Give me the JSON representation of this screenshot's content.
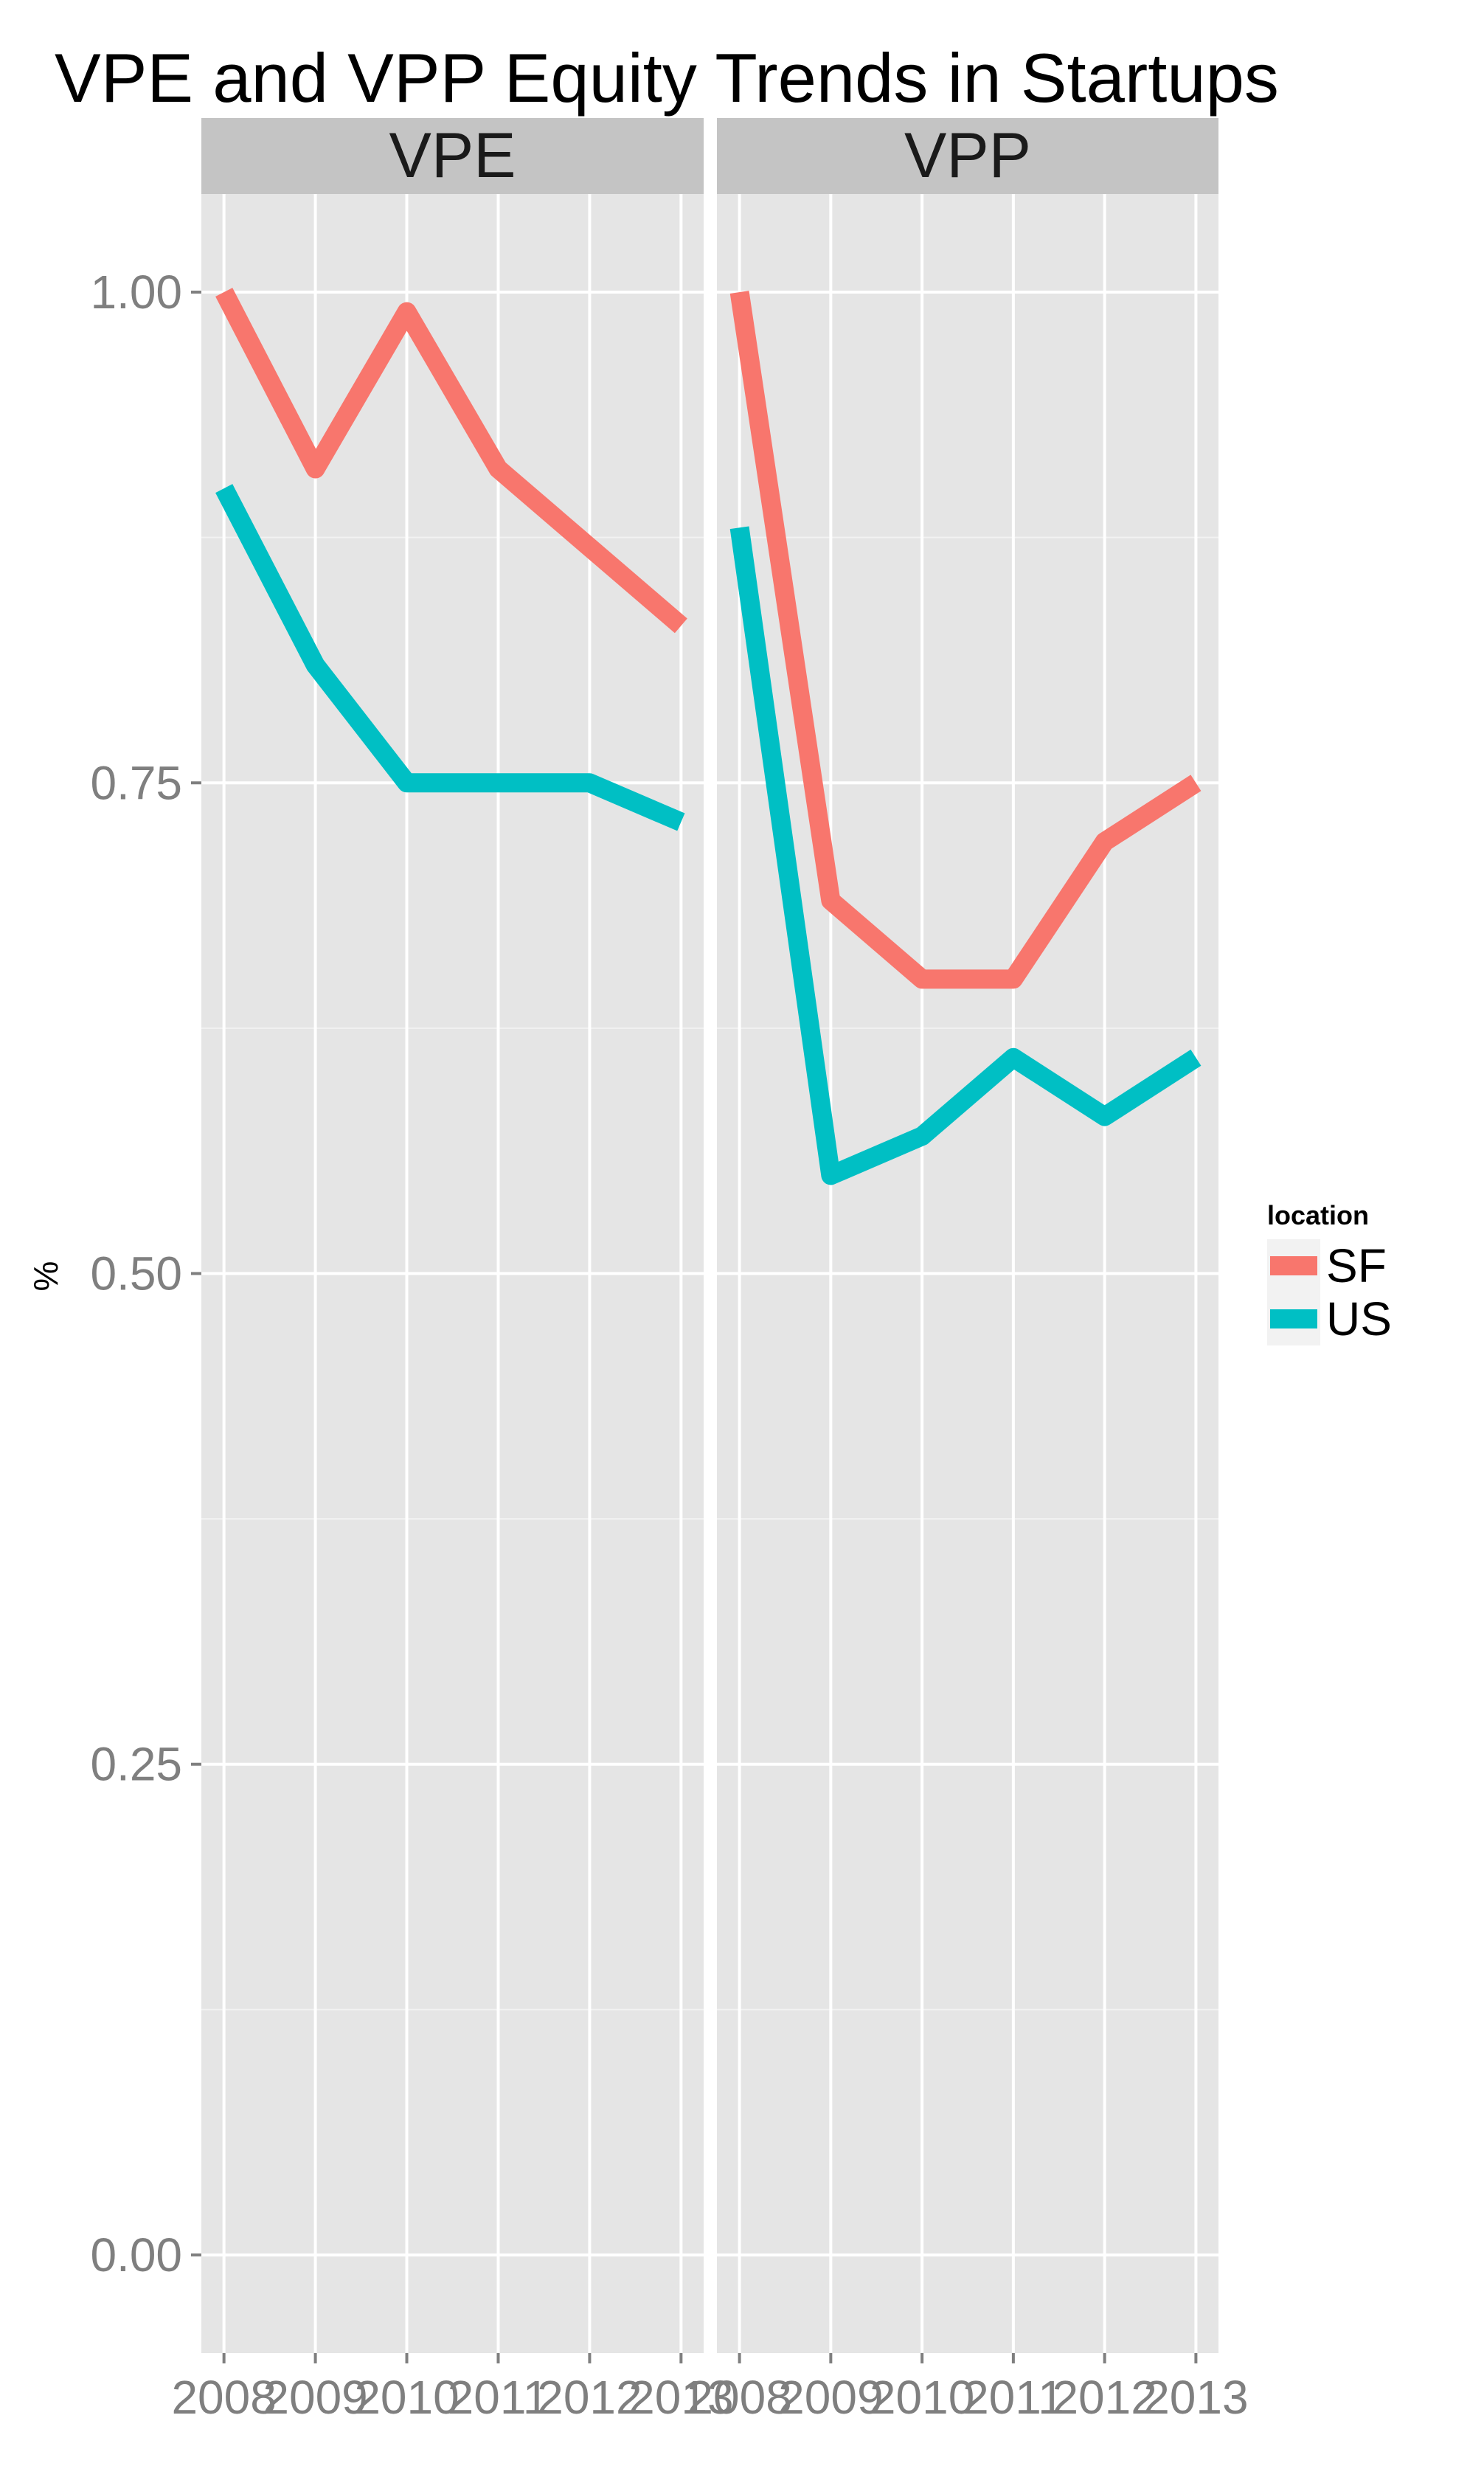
{
  "chart_data": {
    "type": "line",
    "title": "VPE and VPP Equity Trends in Startups",
    "ylabel": "%",
    "xlabel": "",
    "x": [
      2008,
      2009,
      2010,
      2011,
      2012,
      2013
    ],
    "x_tick_labels": [
      "2008",
      "2009",
      "2010",
      "2011",
      "2012",
      "2013"
    ],
    "y_ticks": [
      0.0,
      0.25,
      0.5,
      0.75,
      1.0
    ],
    "y_tick_labels": [
      "0.00",
      "0.25",
      "0.50",
      "0.75",
      "1.00"
    ],
    "ylim": [
      -0.05,
      1.05
    ],
    "grid": true,
    "legend": {
      "title": "location",
      "placement": "right",
      "entries": [
        {
          "label": "SF",
          "color": "#F8766D"
        },
        {
          "label": "US",
          "color": "#00BFC4"
        }
      ]
    },
    "facets": [
      {
        "name": "VPE",
        "series": [
          {
            "name": "SF",
            "color": "#F8766D",
            "values": [
              1.0,
              0.91,
              0.99,
              0.91,
              0.87,
              0.83
            ]
          },
          {
            "name": "US",
            "color": "#00BFC4",
            "values": [
              0.9,
              0.81,
              0.75,
              0.75,
              0.75,
              0.73
            ]
          }
        ]
      },
      {
        "name": "VPP",
        "series": [
          {
            "name": "SF",
            "color": "#F8766D",
            "values": [
              1.0,
              0.69,
              0.65,
              0.65,
              0.72,
              0.75
            ]
          },
          {
            "name": "US",
            "color": "#00BFC4",
            "values": [
              0.88,
              0.55,
              0.57,
              0.61,
              0.58,
              0.61
            ]
          }
        ]
      }
    ]
  }
}
